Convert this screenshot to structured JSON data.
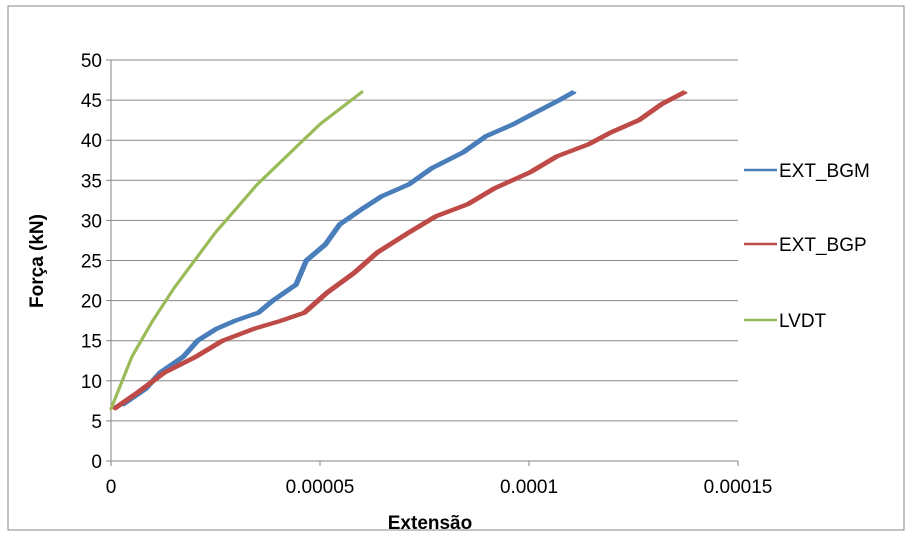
{
  "chart_data": {
    "type": "line",
    "title": "",
    "xlabel": "Extensão",
    "ylabel": "Força (kN)",
    "xlim": [
      0,
      0.00015
    ],
    "ylim": [
      0,
      50
    ],
    "x_ticks": [
      0,
      5e-05,
      0.0001,
      0.00015
    ],
    "x_tick_labels": [
      "0",
      "0.00005",
      "0.0001",
      "0.00015"
    ],
    "y_ticks": [
      0,
      5,
      10,
      15,
      20,
      25,
      30,
      35,
      40,
      45,
      50
    ],
    "y_tick_labels": [
      "0",
      "5",
      "10",
      "15",
      "20",
      "25",
      "30",
      "35",
      "40",
      "45",
      "50"
    ],
    "grid": "horizontal",
    "legend_position": "right",
    "series": [
      {
        "name": "EXT_BGM",
        "color": "#4a7ebb",
        "x": [
          3e-06,
          8e-06,
          1.2e-05,
          1.7e-05,
          2.1e-05,
          2.5e-05,
          3e-05,
          3.5e-05,
          3.9e-05,
          4.4e-05,
          4.7e-05,
          5.1e-05,
          5.5e-05,
          6e-05,
          6.5e-05,
          7.1e-05,
          7.7e-05,
          8.4e-05,
          9e-05,
          9.6e-05,
          0.000102,
          0.000107,
          0.000111
        ],
        "y": [
          7,
          9,
          11,
          13,
          15,
          16.5,
          17.5,
          18.5,
          20,
          22,
          25,
          27,
          29.5,
          31.5,
          33,
          34.5,
          36.5,
          38.5,
          40.5,
          42,
          43.5,
          45,
          46
        ]
      },
      {
        "name": "EXT_BGP",
        "color": "#be4b48",
        "x": [
          1e-06,
          6e-06,
          1.3e-05,
          2e-05,
          2.7e-05,
          3.4e-05,
          4.1e-05,
          4.6e-05,
          5.2e-05,
          5.8e-05,
          6.4e-05,
          7.1e-05,
          7.8e-05,
          8.5e-05,
          9.2e-05,
          0.0001,
          0.000107,
          0.000114,
          0.00012,
          0.000126,
          0.000132,
          0.000137
        ],
        "y": [
          6.5,
          8.5,
          11,
          13,
          15,
          16.5,
          17.5,
          18.5,
          21,
          23.5,
          26,
          28.5,
          30.5,
          32,
          34,
          36,
          38,
          39.5,
          41,
          42.5,
          44.5,
          46
        ]
      },
      {
        "name": "LVDT",
        "color": "#9bbb59",
        "x": [
          0,
          5e-06,
          1e-05,
          1.5e-05,
          2e-05,
          2.5e-05,
          3e-05,
          3.5e-05,
          4e-05,
          4.5e-05,
          5e-05,
          5.5e-05,
          6e-05
        ],
        "y": [
          6.5,
          13,
          17.5,
          21.5,
          25,
          28.5,
          31.5,
          34.5,
          37,
          39.5,
          42,
          44,
          46
        ]
      }
    ]
  }
}
